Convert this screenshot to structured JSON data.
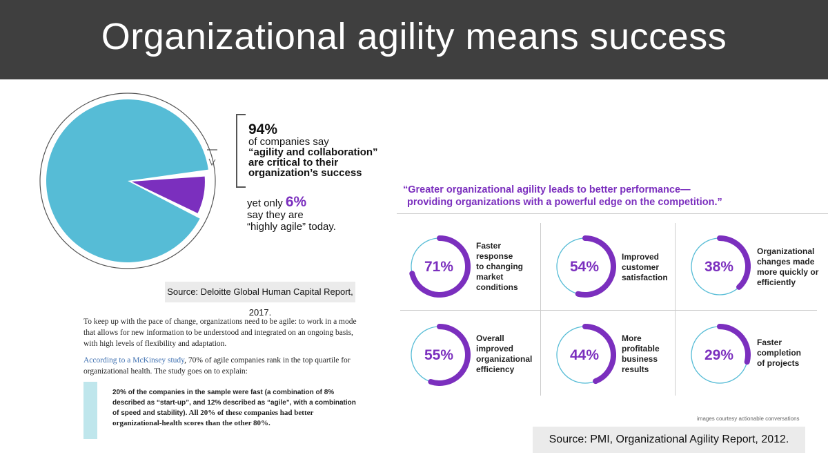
{
  "title": "Organizational agility means success",
  "pie": {
    "big_value": "94%",
    "line1": "of companies say",
    "line2": "“agility and collaboration”",
    "line3": "are critical to their",
    "line4": "organization’s success",
    "yet_prefix": "yet only",
    "yet_value": "6%",
    "yet_line2": "say they are",
    "yet_line3": "“highly agile” today.",
    "source": "Source: Deloitte Global Human Capital Report, 2017.",
    "slices": [
      {
        "label": "agility and collaboration critical",
        "value": 94,
        "color": "#56bcd6"
      },
      {
        "label": "highly agile",
        "value": 6,
        "color": "#7b2fbe"
      }
    ]
  },
  "article": {
    "para1": "To keep up with the pace of change, organizations need to be agile: to work in a mode that allows for new information to be understood and integrated on an ongoing basis, with high levels of flexibility and adaptation.",
    "link_text": "According to a McKinsey study",
    "para2_rest": ", 70% of agile companies rank in the top quartile for organizational health. The study goes on to explain:",
    "quote_part1": "20% of the companies in the sample were fast (a combination of 8% described as “start-up”, and 12% described as “agile”, with a combination of speed and stability).",
    "quote_part2": " All 20% of these companies had better organizational-health scores than the other 80%."
  },
  "pmi": {
    "headline_line1": "“Greater organizational agility leads to better performance—",
    "headline_line2": "providing organizations with a powerful edge on the competition.”",
    "credit": "images courtesy actionable conversations",
    "source": "Source: PMI, Organizational Agility Report, 2012.",
    "stats": [
      {
        "value": "71%",
        "fraction": 0.71,
        "label": [
          "Faster",
          "response",
          "to changing",
          "market",
          "conditions"
        ]
      },
      {
        "value": "54%",
        "fraction": 0.54,
        "label": [
          "Improved",
          "customer",
          "satisfaction"
        ]
      },
      {
        "value": "38%",
        "fraction": 0.38,
        "label": [
          "Organizational",
          "changes made",
          "more quickly or",
          "efficiently"
        ]
      },
      {
        "value": "55%",
        "fraction": 0.55,
        "label": [
          "Overall",
          "improved",
          "organizational",
          "efficiency"
        ]
      },
      {
        "value": "44%",
        "fraction": 0.44,
        "label": [
          "More",
          "profitable",
          "business",
          "results"
        ]
      },
      {
        "value": "29%",
        "fraction": 0.29,
        "label": [
          "Faster",
          "completion",
          "of projects"
        ]
      }
    ]
  },
  "colors": {
    "purple": "#7b2fbe",
    "teal": "#56bcd6",
    "header_bg": "#3f3f3f",
    "source_bg": "#ebebeb"
  }
}
